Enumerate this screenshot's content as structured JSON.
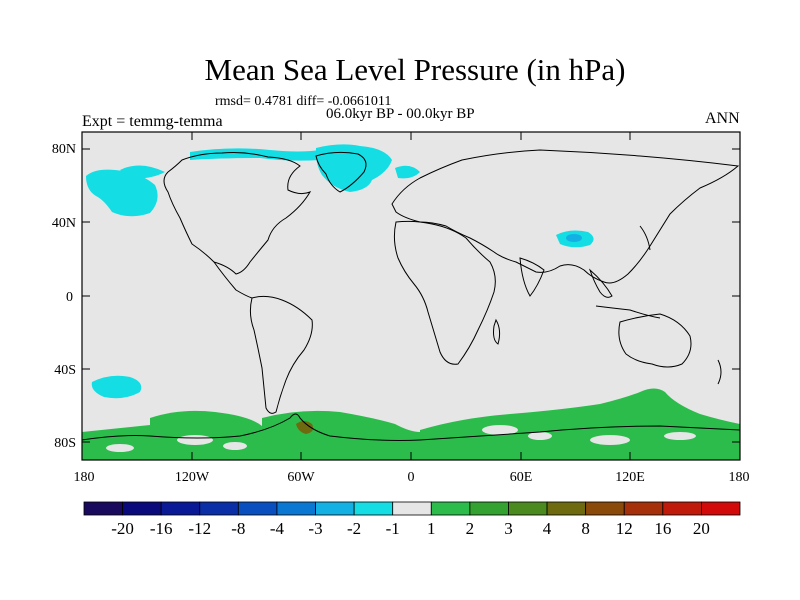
{
  "title": "Mean Sea Level Pressure (in hPa)",
  "stats": "rmsd= 0.4781 diff= -0.0661011",
  "period": "06.0kyr BP - 00.0kyr BP",
  "experiment": "Expt = temmg-temma",
  "season": "ANN",
  "lat_labels": [
    "80N",
    "40N",
    "0",
    "40S",
    "80S"
  ],
  "lon_labels": [
    "180",
    "120W",
    "60W",
    "0",
    "60E",
    "120E",
    "180"
  ],
  "colorbar": {
    "labels": [
      "-20",
      "-16",
      "-12",
      "-8",
      "-4",
      "-3",
      "-2",
      "-1",
      "1",
      "2",
      "3",
      "4",
      "8",
      "12",
      "16",
      "20"
    ],
    "colors": [
      "#1a0a5e",
      "#0a0a7d",
      "#0a1a96",
      "#0a2fa6",
      "#0a4fc0",
      "#0a78d2",
      "#13b0e4",
      "#14dde4",
      "#e6e6e6",
      "#2cbc4c",
      "#33a230",
      "#4a8a1e",
      "#6e6a10",
      "#8a4a0a",
      "#a5300a",
      "#bf1a0a",
      "#d20a0a"
    ]
  },
  "colors": {
    "background": "#e6e6e6",
    "neg_anomaly": "#14dde4",
    "neg_strong": "#13b0e4",
    "pos_anomaly": "#2cbc4c",
    "pos_strong": "#33a230",
    "brown": "#6e6a10"
  }
}
